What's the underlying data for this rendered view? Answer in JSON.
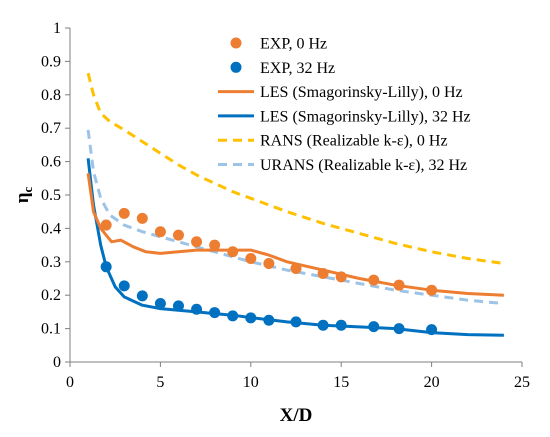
{
  "chart_data": {
    "type": "line",
    "xlabel": "X/D",
    "ylabel": "η",
    "ylabel_sub": "c",
    "xlim": [
      0,
      25
    ],
    "ylim": [
      0,
      1
    ],
    "xticks": [
      0,
      5,
      10,
      15,
      20,
      25
    ],
    "yticks": [
      0,
      0.1,
      0.2,
      0.3,
      0.4,
      0.5,
      0.6,
      0.7,
      0.8,
      0.9,
      1
    ],
    "grid": false,
    "legend_position": "top-right",
    "series": [
      {
        "name": "EXP, 0 Hz",
        "kind": "scatter",
        "color": "#ED7D31",
        "x": [
          2,
          3,
          4,
          5,
          6,
          7,
          8,
          9,
          10,
          11,
          12.5,
          14,
          15,
          16.8,
          18.2,
          20
        ],
        "y": [
          0.41,
          0.445,
          0.43,
          0.39,
          0.38,
          0.36,
          0.35,
          0.33,
          0.31,
          0.295,
          0.28,
          0.265,
          0.255,
          0.245,
          0.23,
          0.215
        ]
      },
      {
        "name": "EXP, 32 Hz",
        "kind": "scatter",
        "color": "#0070C0",
        "x": [
          2,
          3,
          4,
          5,
          6,
          7,
          8,
          9,
          10,
          11,
          12.5,
          14,
          15,
          16.8,
          18.2,
          20
        ],
        "y": [
          0.285,
          0.228,
          0.198,
          0.175,
          0.168,
          0.158,
          0.148,
          0.138,
          0.132,
          0.125,
          0.12,
          0.11,
          0.11,
          0.106,
          0.1,
          0.097
        ]
      },
      {
        "name": "LES (Smagorinsky-Lilly), 0 Hz",
        "kind": "line",
        "dash": "solid",
        "color": "#ED7D31",
        "x": [
          1,
          1.3,
          1.7,
          2.3,
          2.8,
          3.5,
          4.2,
          5,
          6,
          7,
          8,
          9,
          10,
          11,
          12,
          14,
          16,
          18,
          20,
          22,
          24
        ],
        "y": [
          0.565,
          0.45,
          0.4,
          0.36,
          0.365,
          0.345,
          0.33,
          0.325,
          0.33,
          0.335,
          0.335,
          0.335,
          0.335,
          0.32,
          0.3,
          0.275,
          0.25,
          0.23,
          0.215,
          0.205,
          0.2
        ]
      },
      {
        "name": "LES (Smagorinsky-Lilly), 32 Hz",
        "kind": "line",
        "dash": "solid",
        "color": "#0070C0",
        "x": [
          1,
          1.3,
          1.7,
          2,
          2.5,
          3,
          4,
          5,
          6,
          7,
          8,
          9,
          10,
          12,
          14,
          16,
          18,
          20,
          22,
          24
        ],
        "y": [
          0.61,
          0.47,
          0.35,
          0.285,
          0.225,
          0.195,
          0.17,
          0.16,
          0.155,
          0.15,
          0.145,
          0.14,
          0.133,
          0.12,
          0.11,
          0.105,
          0.1,
          0.088,
          0.082,
          0.08
        ]
      },
      {
        "name": "RANS (Realizable k-ε), 0 Hz",
        "kind": "line",
        "dash": "dashed",
        "color": "#FFC000",
        "x": [
          1,
          1.3,
          1.7,
          2.2,
          3,
          4,
          5,
          6,
          7,
          8,
          9,
          10,
          12,
          14,
          16,
          18,
          20,
          22,
          24
        ],
        "y": [
          0.865,
          0.8,
          0.745,
          0.72,
          0.695,
          0.66,
          0.625,
          0.59,
          0.56,
          0.535,
          0.51,
          0.49,
          0.45,
          0.415,
          0.385,
          0.355,
          0.33,
          0.31,
          0.295
        ]
      },
      {
        "name": "URANS (Realizable k-ε), 32 Hz",
        "kind": "line",
        "dash": "dashed",
        "color": "#9DC3E6",
        "x": [
          1,
          1.3,
          1.7,
          2.2,
          3,
          4,
          5,
          6,
          7,
          8,
          9,
          10,
          12,
          14,
          16,
          18,
          20,
          22,
          24
        ],
        "y": [
          0.695,
          0.57,
          0.49,
          0.44,
          0.41,
          0.39,
          0.375,
          0.36,
          0.345,
          0.33,
          0.315,
          0.3,
          0.275,
          0.255,
          0.235,
          0.215,
          0.2,
          0.185,
          0.175
        ]
      }
    ]
  }
}
